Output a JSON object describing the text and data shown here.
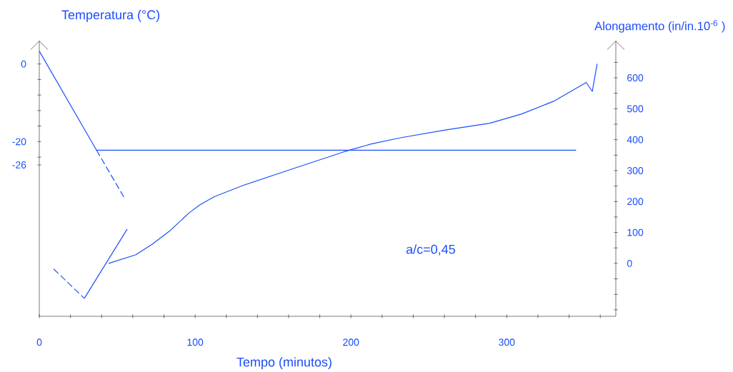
{
  "chart_data": {
    "type": "line",
    "xlabel": "Tempo (minutos)",
    "ylabel": "Temperatura (°C)",
    "y2label": "Alongamento (in/in.10$^{-6}$ )",
    "annotations": [
      "a/c=0,45"
    ],
    "marker": "none",
    "xlim": [
      0,
      370
    ],
    "ylim": [
      -65,
      6
    ],
    "y2lim": [
      -171,
      720
    ],
    "xticks": [
      0,
      {
        "value": 20,
        "label": null
      },
      {
        "value": 40,
        "label": null
      },
      {
        "value": 60,
        "label": null
      },
      {
        "value": 80,
        "label": null
      },
      100,
      {
        "value": 120,
        "label": null
      },
      {
        "value": 140,
        "label": null
      },
      {
        "value": 160,
        "label": null
      },
      {
        "value": 180,
        "label": null
      },
      200,
      {
        "value": 220,
        "label": null
      },
      {
        "value": 240,
        "label": null
      },
      {
        "value": 260,
        "label": null
      },
      {
        "value": 280,
        "label": null
      },
      300,
      {
        "value": 320,
        "label": null
      },
      {
        "value": 340,
        "label": null
      },
      {
        "value": 360,
        "label": null
      }
    ],
    "yticks": [
      0,
      {
        "value": -4,
        "label": null
      },
      {
        "value": -8,
        "label": null
      },
      {
        "value": -12,
        "label": null
      },
      {
        "value": -16,
        "label": null
      },
      -20,
      {
        "value": -24,
        "label": null
      },
      -26
    ],
    "y2ticks": [
      {
        "value": -150,
        "label": null
      },
      {
        "value": -50,
        "label": null
      },
      0,
      {
        "value": 50,
        "label": null
      },
      100,
      {
        "value": 150,
        "label": null
      },
      200,
      {
        "value": 250,
        "label": null
      },
      300,
      {
        "value": 350,
        "label": null
      },
      400,
      {
        "value": 450,
        "label": null
      },
      500,
      {
        "value": 550,
        "label": null
      },
      600,
      {
        "value": 650,
        "label": null
      },
      {
        "value": -100,
        "label": null
      }
    ],
    "series": [
      {
        "color": "#1a4fff",
        "line_style": "solid",
        "x": [
          0,
          36.7,
          344.5
        ],
        "values": [
          3.3,
          -22.2,
          -22.2
        ]
      },
      {
        "color": "#1a4fff",
        "line_style": "dashed",
        "x": [
          36.7,
          54.6
        ],
        "values": [
          -22.2,
          -34.5
        ]
      },
      {
        "color": "#1a4fff",
        "line_style": "dashed",
        "axis": "y2",
        "x": [
          9.2,
          28.9
        ],
        "values": [
          -18,
          -113
        ]
      },
      {
        "color": "#1a4fff",
        "line_style": "solid",
        "axis": "y2",
        "x": [
          28.9,
          56.4
        ],
        "values": [
          -113,
          111
        ]
      },
      {
        "color": "#1a4fff",
        "line_style": "solid",
        "axis": "y2",
        "x": [
          44.5,
          62,
          72.5,
          83.5,
          96.3,
          103,
          112,
          130.7,
          158,
          195,
          213,
          231.7,
          259,
          289,
          309.6,
          330,
          351,
          354.9,
          358
        ],
        "values": [
          0,
          28,
          62,
          104,
          164,
          189,
          215,
          252,
          298,
          360,
          386,
          406,
          430,
          453,
          483,
          524,
          585,
          556,
          645
        ]
      }
    ]
  }
}
